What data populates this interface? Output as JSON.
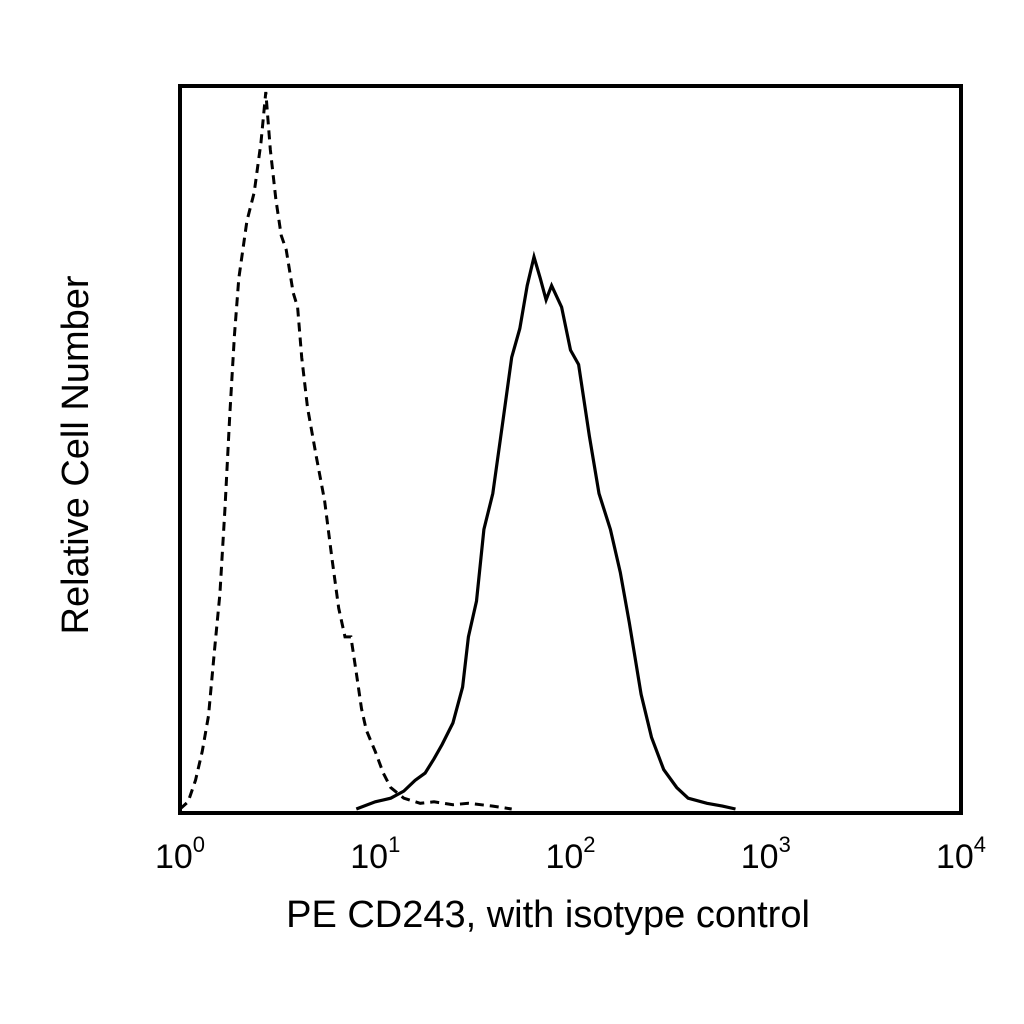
{
  "chart_data": {
    "type": "line",
    "title": "",
    "xlabel": "PE CD243, with isotype control",
    "ylabel": "Relative Cell Number",
    "x_scale": "log",
    "xlim": [
      1,
      10000
    ],
    "ylim": [
      0,
      1
    ],
    "grid": false,
    "legend": "none",
    "x_ticks": [
      {
        "value": 1,
        "base": "10",
        "exp": "0"
      },
      {
        "value": 10,
        "base": "10",
        "exp": "1"
      },
      {
        "value": 100,
        "base": "10",
        "exp": "2"
      },
      {
        "value": 1000,
        "base": "10",
        "exp": "3"
      },
      {
        "value": 10000,
        "base": "10",
        "exp": "4"
      }
    ],
    "series": [
      {
        "style": "dashed",
        "color": "#000000",
        "points": [
          [
            1.0,
            0.0
          ],
          [
            1.1,
            0.01
          ],
          [
            1.2,
            0.04
          ],
          [
            1.3,
            0.08
          ],
          [
            1.4,
            0.13
          ],
          [
            1.5,
            0.22
          ],
          [
            1.6,
            0.3
          ],
          [
            1.7,
            0.42
          ],
          [
            1.8,
            0.55
          ],
          [
            1.9,
            0.66
          ],
          [
            2.0,
            0.74
          ],
          [
            2.2,
            0.82
          ],
          [
            2.4,
            0.86
          ],
          [
            2.6,
            0.93
          ],
          [
            2.75,
            1.0
          ],
          [
            2.9,
            0.92
          ],
          [
            3.1,
            0.85
          ],
          [
            3.3,
            0.8
          ],
          [
            3.5,
            0.78
          ],
          [
            3.8,
            0.72
          ],
          [
            4.0,
            0.7
          ],
          [
            4.2,
            0.63
          ],
          [
            4.5,
            0.56
          ],
          [
            5.0,
            0.49
          ],
          [
            5.5,
            0.43
          ],
          [
            6.0,
            0.35
          ],
          [
            6.5,
            0.28
          ],
          [
            7.0,
            0.24
          ],
          [
            7.5,
            0.24
          ],
          [
            8.0,
            0.19
          ],
          [
            8.5,
            0.14
          ],
          [
            9.0,
            0.11
          ],
          [
            10.0,
            0.08
          ],
          [
            11.0,
            0.05
          ],
          [
            12.0,
            0.03
          ],
          [
            14.0,
            0.015
          ],
          [
            17.0,
            0.008
          ],
          [
            20.0,
            0.01
          ],
          [
            25.0,
            0.006
          ],
          [
            30.0,
            0.008
          ],
          [
            40.0,
            0.004
          ],
          [
            50.0,
            0.0
          ]
        ]
      },
      {
        "style": "solid",
        "color": "#000000",
        "points": [
          [
            8.0,
            0.0
          ],
          [
            10.0,
            0.01
          ],
          [
            12.0,
            0.015
          ],
          [
            14.0,
            0.025
          ],
          [
            16.0,
            0.04
          ],
          [
            18.0,
            0.05
          ],
          [
            20.0,
            0.07
          ],
          [
            22.0,
            0.09
          ],
          [
            25.0,
            0.12
          ],
          [
            28.0,
            0.17
          ],
          [
            30.0,
            0.24
          ],
          [
            33.0,
            0.29
          ],
          [
            36.0,
            0.39
          ],
          [
            40.0,
            0.44
          ],
          [
            45.0,
            0.54
          ],
          [
            50.0,
            0.63
          ],
          [
            55.0,
            0.67
          ],
          [
            60.0,
            0.73
          ],
          [
            65.0,
            0.77
          ],
          [
            70.0,
            0.74
          ],
          [
            75.0,
            0.71
          ],
          [
            80.0,
            0.73
          ],
          [
            90.0,
            0.7
          ],
          [
            100.0,
            0.64
          ],
          [
            110.0,
            0.62
          ],
          [
            125.0,
            0.52
          ],
          [
            140.0,
            0.44
          ],
          [
            160.0,
            0.39
          ],
          [
            180.0,
            0.33
          ],
          [
            200.0,
            0.26
          ],
          [
            230.0,
            0.16
          ],
          [
            260.0,
            0.1
          ],
          [
            300.0,
            0.055
          ],
          [
            350.0,
            0.03
          ],
          [
            400.0,
            0.015
          ],
          [
            500.0,
            0.008
          ],
          [
            600.0,
            0.004
          ],
          [
            700.0,
            0.0
          ]
        ]
      }
    ]
  }
}
